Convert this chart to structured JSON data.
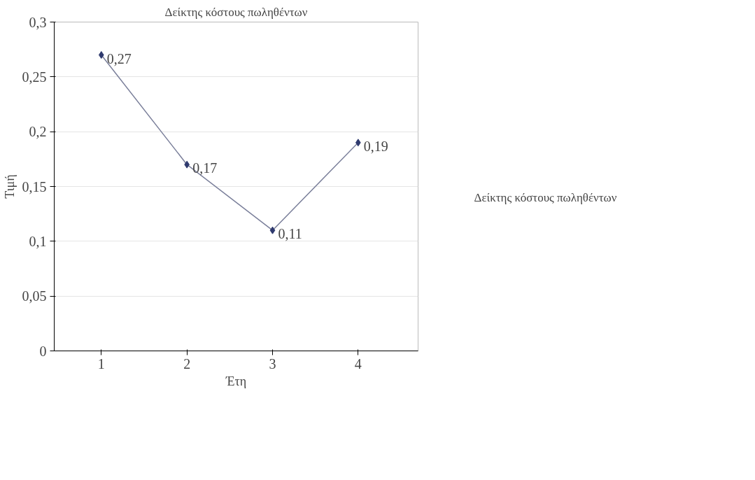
{
  "chart_data": {
    "type": "line",
    "title": "Δείκτης κόστους πωληθέντων",
    "xlabel": "Έτη",
    "ylabel": "Τιμή",
    "categories": [
      "1",
      "2",
      "3",
      "4"
    ],
    "series": [
      {
        "name": "Δείκτης κόστους πωληθέντων",
        "color": "#2f3a6e",
        "values": [
          0.27,
          0.17,
          0.11,
          0.19
        ],
        "value_labels": [
          "0,27",
          "0,17",
          "0,11",
          "0,19"
        ]
      }
    ],
    "ylim": [
      0,
      0.3
    ],
    "yticks": [
      {
        "value": 0,
        "label": "0"
      },
      {
        "value": 0.05,
        "label": "0,05"
      },
      {
        "value": 0.1,
        "label": "0,1"
      },
      {
        "value": 0.15,
        "label": "0,15"
      },
      {
        "value": 0.2,
        "label": "0,2"
      },
      {
        "value": 0.25,
        "label": "0,25"
      },
      {
        "value": 0.3,
        "label": "0,3"
      }
    ],
    "grid": "y",
    "legend": "right",
    "marker": "diamond",
    "line_style": "solid"
  }
}
